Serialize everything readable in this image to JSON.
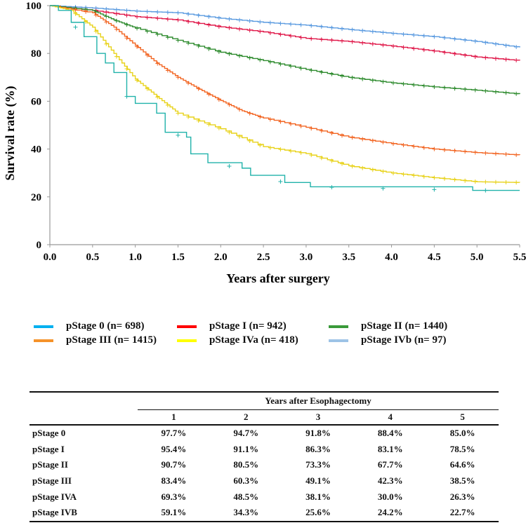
{
  "chart_data": {
    "type": "line",
    "title": "",
    "xlabel": "Years after surgery",
    "ylabel": "Survival rate (%)",
    "xlim": [
      0,
      5.5
    ],
    "ylim": [
      0,
      100
    ],
    "xticks": [
      "0.0",
      "0.5",
      "1.0",
      "1.5",
      "2.0",
      "2.5",
      "3.0",
      "3.5",
      "4.0",
      "4.5",
      "5.0",
      "5.5"
    ],
    "yticks": [
      "0",
      "20",
      "40",
      "60",
      "80",
      "100"
    ],
    "grid": false,
    "legend_placement": "bottom",
    "series": [
      {
        "name": "pStage 0 (n= 698)",
        "color": "#5b9be0",
        "legend_color": "#00b0f0",
        "x": [
          0,
          0.5,
          1,
          1.5,
          2,
          2.5,
          3,
          3.5,
          4,
          4.5,
          5,
          5.5
        ],
        "y": [
          100,
          99,
          97.7,
          97,
          94.7,
          93,
          91.8,
          90,
          88.4,
          87,
          85,
          82.5
        ]
      },
      {
        "name": "pStage I (n= 942)",
        "color": "#e0194a",
        "legend_color": "#ff0000",
        "x": [
          0,
          0.5,
          1,
          1.5,
          2,
          2.5,
          3,
          3.5,
          4,
          4.5,
          5,
          5.5
        ],
        "y": [
          100,
          98,
          95.4,
          94,
          91.1,
          89,
          86.3,
          85,
          83.1,
          81,
          78.5,
          77
        ]
      },
      {
        "name": "pStage II (n= 1440)",
        "color": "#2e8b2e",
        "legend_color": "#3a9a3a",
        "x": [
          0,
          0.5,
          0.75,
          1,
          1.5,
          2,
          2.5,
          3,
          3.5,
          4,
          4.5,
          5,
          5.5
        ],
        "y": [
          100,
          98,
          94,
          90.7,
          85.5,
          80.5,
          77,
          73.3,
          70,
          67.7,
          66,
          64.6,
          63
        ]
      },
      {
        "name": "pStage III (n= 1415)",
        "color": "#f26522",
        "legend_color": "#f5922a",
        "x": [
          0,
          0.5,
          0.75,
          1,
          1.25,
          1.5,
          1.75,
          2,
          2.25,
          2.5,
          3,
          3.5,
          4,
          4.5,
          5,
          5.5
        ],
        "y": [
          100,
          97,
          91,
          83.4,
          76,
          70,
          65,
          60.3,
          56,
          53,
          49.1,
          45,
          42.3,
          40,
          38.5,
          37.5
        ]
      },
      {
        "name": "pStage IVa (n= 418)",
        "color": "#e8d21a",
        "legend_color": "#ffff00",
        "x": [
          0,
          0.25,
          0.5,
          0.75,
          1,
          1.25,
          1.5,
          2,
          2.5,
          3,
          3.5,
          4,
          4.5,
          5,
          5.5
        ],
        "y": [
          100,
          98,
          91,
          80,
          69.3,
          62,
          55,
          48.5,
          41,
          38.1,
          33,
          30,
          28,
          26.3,
          26
        ]
      },
      {
        "name": "pStage IVb (n= 97)",
        "color": "#20b2aa",
        "legend_color": "#9dc3e6",
        "x": [
          0,
          0.1,
          0.25,
          0.4,
          0.55,
          0.65,
          0.75,
          0.9,
          1,
          1.25,
          1.35,
          1.6,
          1.65,
          1.85,
          2.25,
          2.35,
          2.75,
          3.05,
          4.95,
          5.5
        ],
        "y": [
          100,
          98,
          93,
          87,
          80,
          76,
          72,
          62,
          59.1,
          55,
          47,
          45,
          38,
          34.3,
          32,
          29,
          26,
          24.2,
          22.7,
          22.7
        ]
      }
    ]
  },
  "table": {
    "group_header": "Years after Esophagectomy",
    "columns": [
      "1",
      "2",
      "3",
      "4",
      "5"
    ],
    "rows": [
      {
        "label": "pStage 0",
        "values": [
          "97.7%",
          "94.7%",
          "91.8%",
          "88.4%",
          "85.0%"
        ]
      },
      {
        "label": "pStage I",
        "values": [
          "95.4%",
          "91.1%",
          "86.3%",
          "83.1%",
          "78.5%"
        ]
      },
      {
        "label": "pStage II",
        "values": [
          "90.7%",
          "80.5%",
          "73.3%",
          "67.7%",
          "64.6%"
        ]
      },
      {
        "label": "pStage III",
        "values": [
          "83.4%",
          "60.3%",
          "49.1%",
          "42.3%",
          "38.5%"
        ]
      },
      {
        "label": "pStage IVA",
        "values": [
          "69.3%",
          "48.5%",
          "38.1%",
          "30.0%",
          "26.3%"
        ]
      },
      {
        "label": "pStage IVB",
        "values": [
          "59.1%",
          "34.3%",
          "25.6%",
          "24.2%",
          "22.7%"
        ]
      }
    ]
  }
}
